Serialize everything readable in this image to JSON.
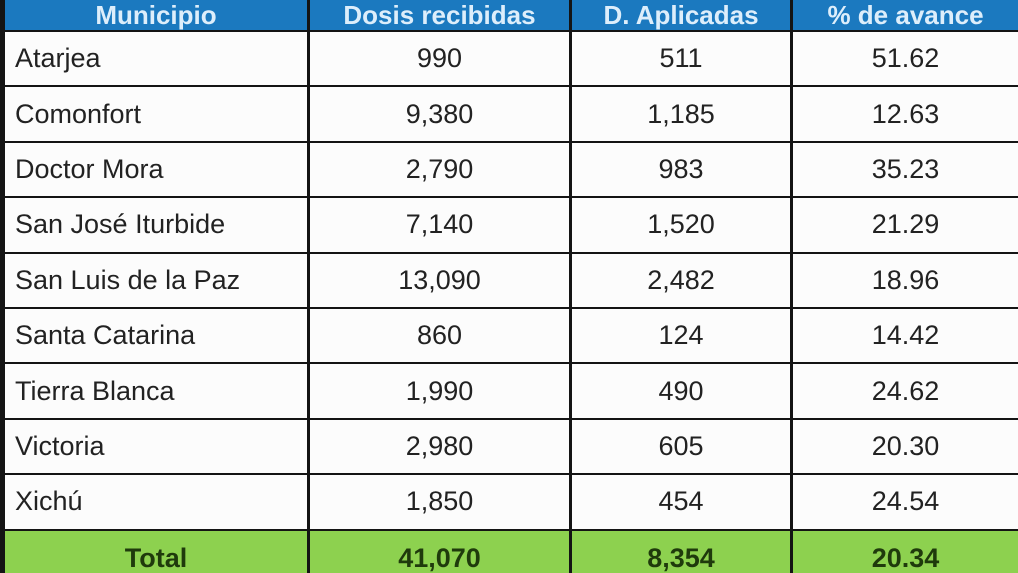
{
  "table": {
    "headers": [
      "Municipio",
      "Dosis recibidas",
      "D. Aplicadas",
      "% de avance"
    ],
    "rows": [
      {
        "name": "Atarjea",
        "received": "990",
        "applied": "511",
        "progress": "51.62"
      },
      {
        "name": "Comonfort",
        "received": "9,380",
        "applied": "1,185",
        "progress": "12.63"
      },
      {
        "name": "Doctor Mora",
        "received": "2,790",
        "applied": "983",
        "progress": "35.23"
      },
      {
        "name": "San José Iturbide",
        "received": "7,140",
        "applied": "1,520",
        "progress": "21.29"
      },
      {
        "name": "San Luis de la Paz",
        "received": "13,090",
        "applied": "2,482",
        "progress": "18.96"
      },
      {
        "name": "Santa Catarina",
        "received": "860",
        "applied": "124",
        "progress": "14.42"
      },
      {
        "name": "Tierra Blanca",
        "received": "1,990",
        "applied": "490",
        "progress": "24.62"
      },
      {
        "name": "Victoria",
        "received": "2,980",
        "applied": "605",
        "progress": "20.30"
      },
      {
        "name": "Xichú",
        "received": "1,850",
        "applied": "454",
        "progress": "24.54"
      }
    ],
    "total": {
      "label": "Total",
      "received": "41,070",
      "applied": "8,354",
      "progress": "20.34"
    }
  },
  "colors": {
    "header_bg": "#1b79bf",
    "header_text": "#ddeefb",
    "total_bg": "#8dd14f",
    "total_text": "#1f3a0c",
    "border": "#141414",
    "row_bg": "#fcfcfc",
    "cell_text": "#222222"
  },
  "chart_data": {
    "type": "table",
    "title": "",
    "columns": [
      "Municipio",
      "Dosis recibidas",
      "D. Aplicadas",
      "% de avance"
    ],
    "rows": [
      [
        "Atarjea",
        990,
        511,
        51.62
      ],
      [
        "Comonfort",
        9380,
        1185,
        12.63
      ],
      [
        "Doctor Mora",
        2790,
        983,
        35.23
      ],
      [
        "San José Iturbide",
        7140,
        1520,
        21.29
      ],
      [
        "San Luis de la Paz",
        13090,
        2482,
        18.96
      ],
      [
        "Santa Catarina",
        860,
        124,
        14.42
      ],
      [
        "Tierra Blanca",
        1990,
        490,
        24.62
      ],
      [
        "Victoria",
        2980,
        605,
        20.3
      ],
      [
        "Xichú",
        1850,
        454,
        24.54
      ]
    ],
    "total_row": [
      "Total",
      41070,
      8354,
      20.34
    ],
    "layout_hints": {
      "header_style": "blue background, white bold text",
      "total_style": "green background, dark bold text, partially cut off at bottom edge"
    }
  }
}
